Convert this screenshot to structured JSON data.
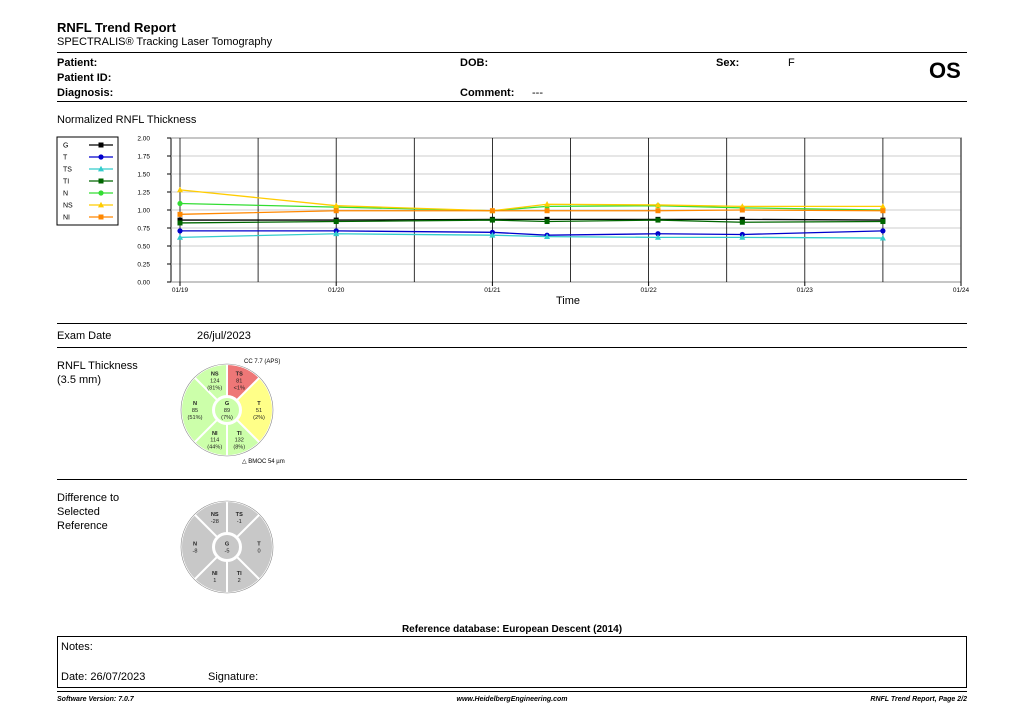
{
  "header": {
    "title": "RNFL Trend Report",
    "subtitle": "SPECTRALIS® Tracking Laser Tomography",
    "patient_label": "Patient:",
    "patient_id_label": "Patient ID:",
    "diagnosis_label": "Diagnosis:",
    "dob_label": "DOB:",
    "comment_label": "Comment:",
    "comment_value": "---",
    "sex_label": "Sex:",
    "sex_value": "F",
    "eye": "OS"
  },
  "trend": {
    "section_title": "Normalized RNFL Thickness",
    "xlabel": "Time"
  },
  "chart_data": {
    "type": "line",
    "title": "Normalized RNFL Thickness",
    "xlabel": "Time",
    "ylabel": "",
    "ylim": [
      0,
      2.0
    ],
    "y_ticks": [
      "0.00",
      "0.25",
      "0.50",
      "0.75",
      "1.00",
      "1.25",
      "1.50",
      "1.75",
      "2.00"
    ],
    "x_tick_labels": [
      "01/19",
      "01/20",
      "01/21",
      "01/22",
      "01/23",
      "01/24"
    ],
    "x": [
      0.0,
      1.0,
      2.0,
      2.35,
      3.06,
      3.6,
      4.5
    ],
    "grid": true,
    "legend_position": "top-left",
    "series": [
      {
        "name": "G",
        "color": "#000000",
        "marker": "square",
        "values": [
          0.86,
          0.86,
          0.87,
          0.87,
          0.87,
          0.87,
          0.86
        ]
      },
      {
        "name": "T",
        "color": "#0000cc",
        "marker": "circle",
        "values": [
          0.71,
          0.71,
          0.69,
          0.65,
          0.67,
          0.66,
          0.71
        ]
      },
      {
        "name": "TS",
        "color": "#33cccc",
        "marker": "triangle",
        "values": [
          0.62,
          0.67,
          0.65,
          0.63,
          0.62,
          0.62,
          0.61
        ]
      },
      {
        "name": "TI",
        "color": "#006600",
        "marker": "square",
        "values": [
          0.82,
          0.84,
          0.86,
          0.84,
          0.86,
          0.83,
          0.84
        ]
      },
      {
        "name": "N",
        "color": "#33dd33",
        "marker": "circle",
        "values": [
          1.09,
          1.04,
          0.99,
          1.05,
          1.06,
          1.03,
          1.0
        ]
      },
      {
        "name": "NS",
        "color": "#ffcc00",
        "marker": "triangle",
        "values": [
          1.28,
          1.06,
          0.99,
          1.08,
          1.07,
          1.05,
          1.05
        ]
      },
      {
        "name": "NI",
        "color": "#ff8800",
        "marker": "square",
        "values": [
          0.94,
          0.99,
          0.99,
          0.99,
          0.99,
          1.0,
          0.99
        ]
      }
    ]
  },
  "exam": {
    "label": "Exam Date",
    "value": "26/jul/2023"
  },
  "thickness": {
    "label1": "RNFL Thickness",
    "label2": "(3.5 mm)",
    "cc_note": "CC 7.7 (APS)",
    "bmo_note": "BMOC 54 µm",
    "sectors": {
      "G": {
        "name": "G",
        "v": "89",
        "p": "(7%)",
        "color": "#ccffaa"
      },
      "T": {
        "name": "T",
        "v": "51",
        "p": "(2%)",
        "color": "#ffff88"
      },
      "TS": {
        "name": "TS",
        "v": "81",
        "p": "<1%",
        "color": "#ee7777"
      },
      "TI": {
        "name": "TI",
        "v": "132",
        "p": "(8%)",
        "color": "#ccffaa"
      },
      "N": {
        "name": "N",
        "v": "85",
        "p": "(51%)",
        "color": "#ccffaa"
      },
      "NS": {
        "name": "NS",
        "v": "124",
        "p": "(81%)",
        "color": "#ccffaa"
      },
      "NI": {
        "name": "NI",
        "v": "114",
        "p": "(44%)",
        "color": "#ccffaa"
      }
    }
  },
  "difference": {
    "label1": "Difference to",
    "label2": "Selected",
    "label3": "Reference",
    "sectors": {
      "G": {
        "name": "G",
        "v": "-5"
      },
      "T": {
        "name": "T",
        "v": "0"
      },
      "TS": {
        "name": "TS",
        "v": "-1"
      },
      "TI": {
        "name": "TI",
        "v": "2"
      },
      "N": {
        "name": "N",
        "v": "-8"
      },
      "NS": {
        "name": "NS",
        "v": "-28"
      },
      "NI": {
        "name": "NI",
        "v": "1"
      }
    }
  },
  "reference_db": "Reference database: European Descent (2014)",
  "notes": {
    "label": "Notes:",
    "date": "Date: 26/07/2023",
    "signature": "Signature:"
  },
  "footer": {
    "left": "Software Version: 7.0.7",
    "center": "www.HeidelbergEngineering.com",
    "right": "RNFL Trend Report, Page 2/2"
  }
}
